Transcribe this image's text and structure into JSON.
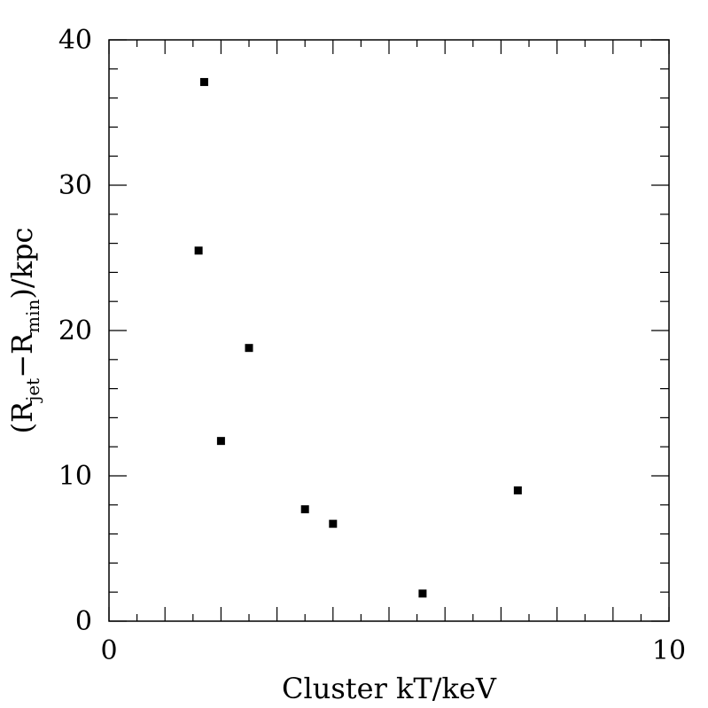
{
  "chart_data": {
    "type": "scatter",
    "title": "",
    "xlabel": "Cluster kT/keV",
    "ylabel": {
      "open": "(R",
      "sub1": "jet",
      "minus": "−R",
      "sub2": "min",
      "close": ")/kpc"
    },
    "xlim": [
      0,
      10
    ],
    "ylim": [
      0,
      40
    ],
    "x_tick_labels": [
      "0",
      "10"
    ],
    "y_tick_labels": [
      "0",
      "10",
      "20",
      "30",
      "40"
    ],
    "grid": false,
    "legend": "none",
    "marker_color": "#000000",
    "points": [
      {
        "x": 1.7,
        "y": 37.1
      },
      {
        "x": 1.6,
        "y": 25.5
      },
      {
        "x": 2.5,
        "y": 18.8
      },
      {
        "x": 2.0,
        "y": 12.4
      },
      {
        "x": 3.5,
        "y": 7.7
      },
      {
        "x": 4.0,
        "y": 6.7
      },
      {
        "x": 5.6,
        "y": 1.9
      },
      {
        "x": 7.3,
        "y": 9.0
      }
    ]
  }
}
